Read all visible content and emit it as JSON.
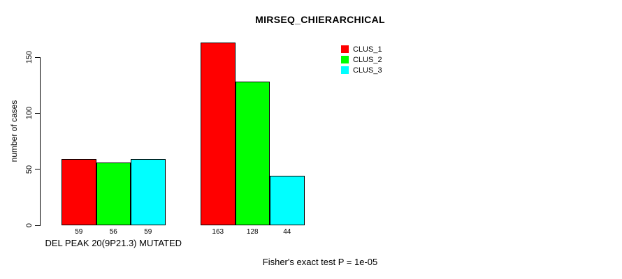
{
  "chart_data": {
    "type": "bar",
    "title": "MIRSEQ_CHIERARCHICAL",
    "ylabel": "number of cases",
    "categories": [
      "DEL PEAK 20(9P21.3) MUTATED",
      ""
    ],
    "series": [
      {
        "name": "CLUS_1",
        "color": "#ff0000",
        "values": [
          59,
          163
        ]
      },
      {
        "name": "CLUS_2",
        "color": "#00ff00",
        "values": [
          56,
          128
        ]
      },
      {
        "name": "CLUS_3",
        "color": "#00ffff",
        "values": [
          59,
          44
        ]
      }
    ],
    "yticks": [
      0,
      50,
      100,
      150
    ],
    "ylim": [
      0,
      163
    ],
    "bar_value_labels": [
      [
        59,
        56,
        59
      ],
      [
        163,
        128,
        44
      ]
    ],
    "annotation": "Fisher's exact test P = 1e-05",
    "legend_position": "top-right",
    "grid": false,
    "bar_border_color": "#000000",
    "background_color": "#ffffff"
  }
}
